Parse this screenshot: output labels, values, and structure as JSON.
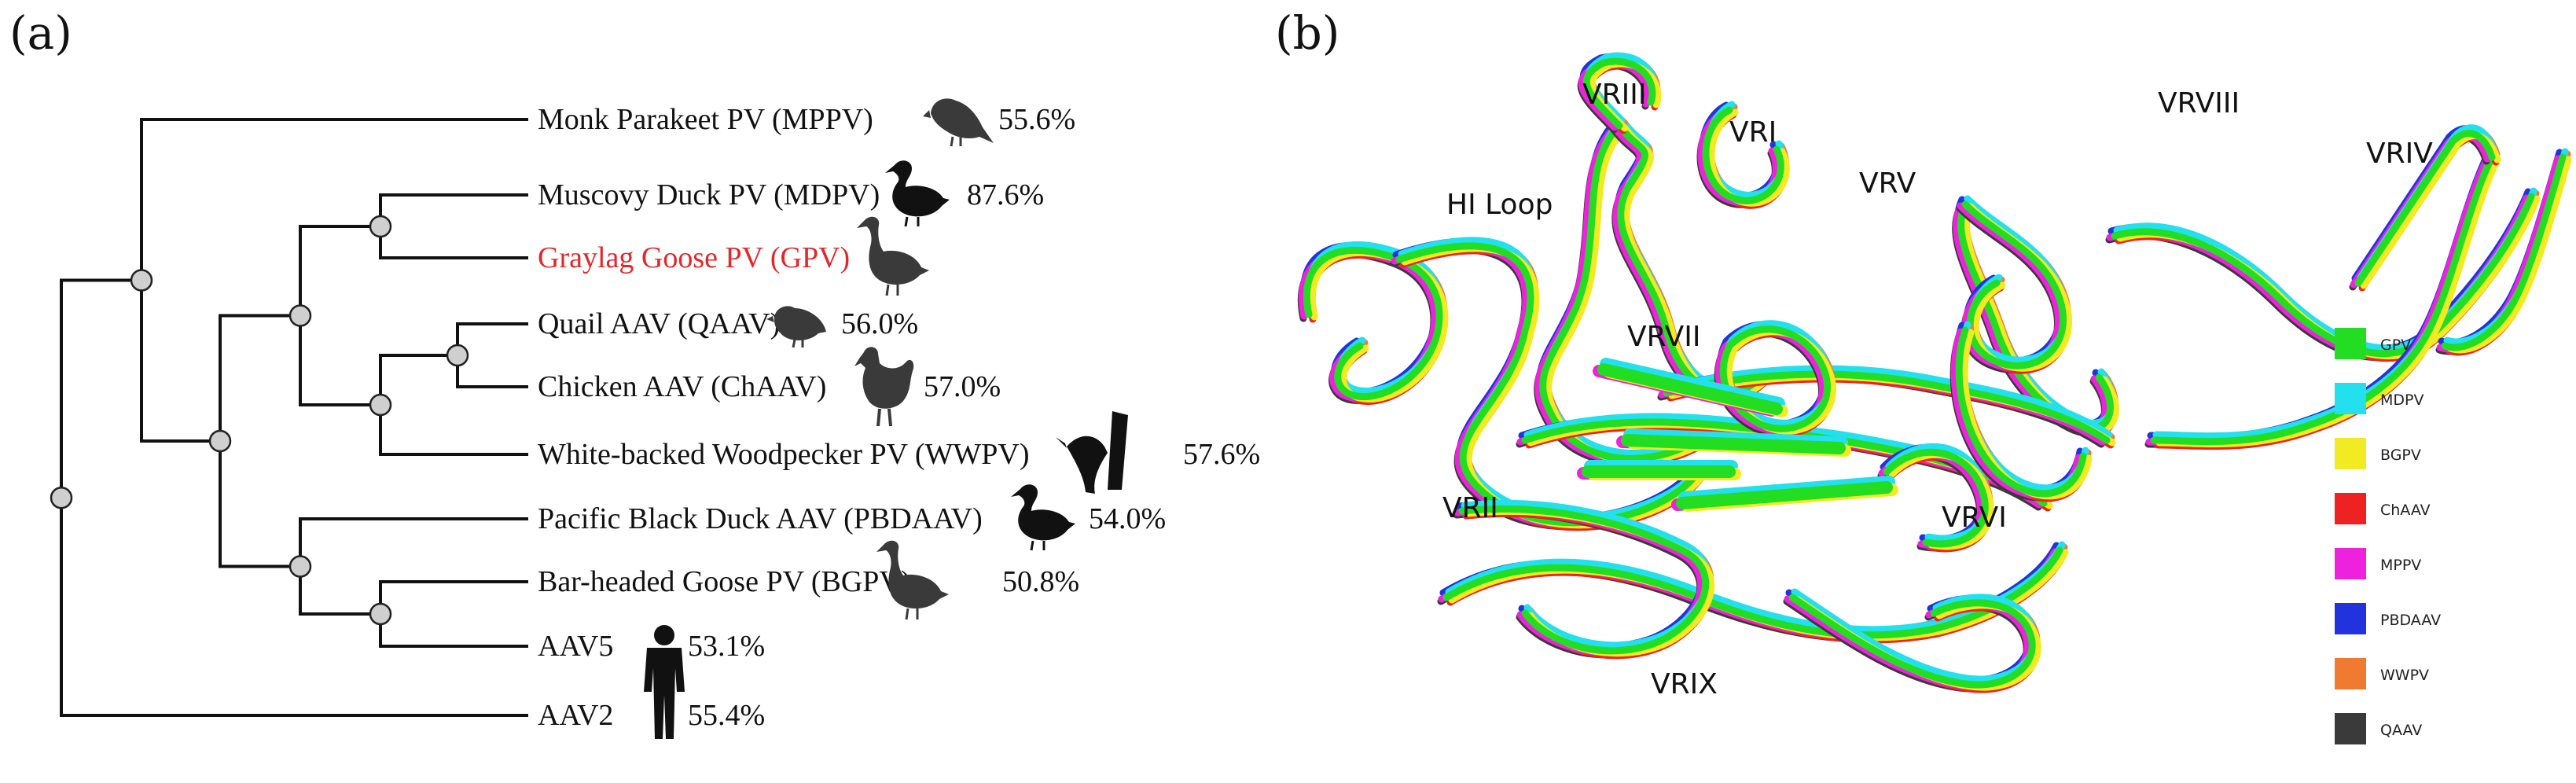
{
  "panel_a": {
    "letter": "(a)"
  },
  "panel_b": {
    "letter": "(b)"
  },
  "taxa": [
    {
      "name": "Monk Parakeet PV (MPPV)",
      "percent": "55.6%",
      "highlight": false,
      "icon": "parrot-icon"
    },
    {
      "name": "Muscovy Duck PV (MDPV)",
      "percent": "87.6%",
      "highlight": false,
      "icon": "duck-icon"
    },
    {
      "name": "Graylag Goose PV (GPV)",
      "percent": "",
      "highlight": true,
      "icon": "goose-icon"
    },
    {
      "name": "Quail AAV (QAAV)",
      "percent": "56.0%",
      "highlight": false,
      "icon": "quail-icon"
    },
    {
      "name": "Chicken AAV (ChAAV)",
      "percent": "57.0%",
      "highlight": false,
      "icon": "chicken-icon"
    },
    {
      "name": "White-backed Woodpecker PV (WWPV)",
      "percent": "57.6%",
      "highlight": false,
      "icon": "woodpecker-icon"
    },
    {
      "name": "Pacific Black Duck AAV (PBDAAV)",
      "percent": "54.0%",
      "highlight": false,
      "icon": "duck-icon"
    },
    {
      "name": "Bar-headed Goose PV (BGPV)",
      "percent": "50.8%",
      "highlight": false,
      "icon": "goose-icon"
    },
    {
      "name": "AAV5",
      "percent": "53.1%",
      "highlight": false,
      "icon": "human-icon"
    },
    {
      "name": "AAV2",
      "percent": "55.4%",
      "highlight": false,
      "icon": "human-icon"
    }
  ],
  "vr_labels": [
    "VRIII",
    "VRI",
    "VRV",
    "VRVIII",
    "VRIV",
    "HI Loop",
    "VRVII",
    "VRII",
    "VRVI",
    "VRIX"
  ],
  "legend": [
    {
      "label": "GPV",
      "color": "#22dd22"
    },
    {
      "label": "MDPV",
      "color": "#22e0ee"
    },
    {
      "label": "BGPV",
      "color": "#f2ea22"
    },
    {
      "label": "ChAAV",
      "color": "#ee2222"
    },
    {
      "label": "MPPV",
      "color": "#ee22dd"
    },
    {
      "label": "PBDAAV",
      "color": "#2233dd"
    },
    {
      "label": "WWPV",
      "color": "#f07a30"
    },
    {
      "label": "QAAV",
      "color": "#3a3a3a"
    }
  ]
}
